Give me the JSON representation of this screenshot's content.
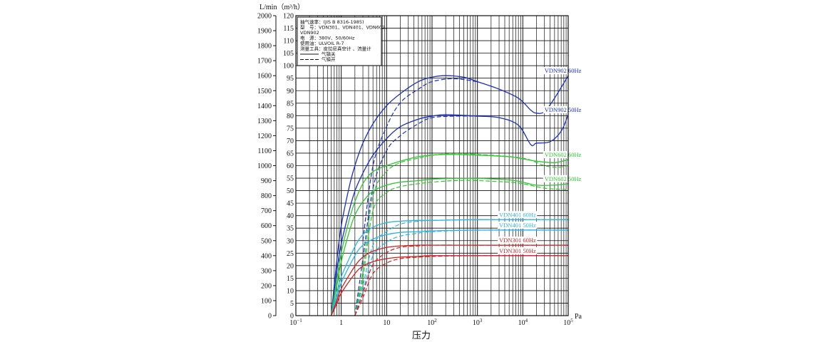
{
  "chart_data": {
    "type": "line",
    "xscale": "log",
    "xlim": [
      0.1,
      100000
    ],
    "x_ticks": [
      {
        "base": "10",
        "exp": "−1"
      },
      {
        "base": "1",
        "exp": ""
      },
      {
        "base": "10",
        "exp": ""
      },
      {
        "base": "10",
        "exp": "2"
      },
      {
        "base": "10",
        "exp": "3"
      },
      {
        "base": "10",
        "exp": "4"
      },
      {
        "base": "10",
        "exp": "5"
      }
    ],
    "x_unit": "Pa",
    "xlabel": "压力",
    "y_unit": "L/min（m³/h）",
    "ylim_lmin": [
      0,
      2000
    ],
    "ylim_m3h": [
      0,
      120
    ],
    "y_left_ticks": [
      "0",
      "100",
      "200",
      "300",
      "400",
      "500",
      "600",
      "700",
      "800",
      "900",
      "1000",
      "1100",
      "1200",
      "1300",
      "1400",
      "1500",
      "1600",
      "1700",
      "1800",
      "1900",
      "2000"
    ],
    "y_right_ticks": [
      "0",
      "5",
      "10",
      "15",
      "20",
      "25",
      "30",
      "35",
      "40",
      "45",
      "50",
      "55",
      "60",
      "65",
      "70",
      "75",
      "80",
      "85",
      "90",
      "95",
      "100",
      "105",
      "110",
      "115",
      "120"
    ],
    "grid": true,
    "legend": {
      "lines": [
        "抽气速率：(JIS B 8316-1985)",
        "型　号：VDN301、VDN401、VDN602、",
        "VDN902",
        "电　源：380V、50/60Hz",
        "使用油：ULVOIL R-7",
        "测量工具：皮拉尼真空计 、流量计"
      ],
      "solid_label": "气镇关",
      "dashed_label": "气镇开"
    },
    "series": [
      {
        "name": "VDN902  60Hz",
        "color": "#1a2fc8",
        "label_x": 30000,
        "solid": [
          [
            0.6,
            0
          ],
          [
            0.8,
            370
          ],
          [
            1,
            600
          ],
          [
            1.5,
            860
          ],
          [
            2,
            1000
          ],
          [
            3,
            1150
          ],
          [
            5,
            1280
          ],
          [
            10,
            1400
          ],
          [
            20,
            1480
          ],
          [
            50,
            1560
          ],
          [
            100,
            1590
          ],
          [
            200,
            1600
          ],
          [
            500,
            1590
          ],
          [
            1000,
            1560
          ],
          [
            3000,
            1510
          ],
          [
            8000,
            1450
          ],
          [
            15000,
            1370
          ],
          [
            20000,
            1350
          ],
          [
            30000,
            1360
          ],
          [
            50000,
            1450
          ],
          [
            100000,
            1600
          ]
        ],
        "dashed": [
          [
            3,
            500
          ],
          [
            5,
            1000
          ],
          [
            10,
            1260
          ],
          [
            20,
            1420
          ],
          [
            50,
            1510
          ],
          [
            100,
            1560
          ],
          [
            300,
            1580
          ],
          [
            1000,
            1560
          ]
        ]
      },
      {
        "name": "VDN902  50Hz",
        "color": "#1a2fc8",
        "label_x": 30000,
        "solid": [
          [
            0.6,
            0
          ],
          [
            0.8,
            300
          ],
          [
            1,
            480
          ],
          [
            1.5,
            700
          ],
          [
            2,
            830
          ],
          [
            3,
            950
          ],
          [
            5,
            1070
          ],
          [
            10,
            1180
          ],
          [
            20,
            1260
          ],
          [
            50,
            1310
          ],
          [
            100,
            1330
          ],
          [
            200,
            1340
          ],
          [
            1000,
            1330
          ],
          [
            3000,
            1320
          ],
          [
            8000,
            1270
          ],
          [
            15000,
            1140
          ],
          [
            20000,
            1150
          ],
          [
            40000,
            1160
          ],
          [
            70000,
            1230
          ],
          [
            100000,
            1340
          ]
        ],
        "dashed": [
          [
            2,
            0
          ],
          [
            3,
            380
          ],
          [
            5,
            850
          ],
          [
            10,
            1100
          ],
          [
            20,
            1200
          ],
          [
            50,
            1280
          ],
          [
            100,
            1320
          ],
          [
            300,
            1330
          ],
          [
            1000,
            1330
          ]
        ]
      },
      {
        "name": "VDN602  60Hz",
        "color": "#2ec82e",
        "label_x": 30000,
        "solid": [
          [
            0.6,
            0
          ],
          [
            0.8,
            240
          ],
          [
            1,
            420
          ],
          [
            1.5,
            640
          ],
          [
            2,
            760
          ],
          [
            3,
            880
          ],
          [
            5,
            960
          ],
          [
            10,
            1000
          ],
          [
            20,
            1030
          ],
          [
            50,
            1060
          ],
          [
            100,
            1070
          ],
          [
            200,
            1075
          ],
          [
            1000,
            1070
          ],
          [
            5000,
            1060
          ],
          [
            10000,
            1045
          ],
          [
            20000,
            1030
          ],
          [
            50000,
            1020
          ],
          [
            100000,
            1040
          ]
        ],
        "dashed": [
          [
            2,
            0
          ],
          [
            3,
            300
          ],
          [
            5,
            800
          ],
          [
            10,
            960
          ],
          [
            20,
            1020
          ],
          [
            50,
            1050
          ],
          [
            100,
            1070
          ],
          [
            300,
            1080
          ],
          [
            1000,
            1075
          ],
          [
            10000,
            1050
          ],
          [
            30000,
            1000
          ],
          [
            60000,
            990
          ],
          [
            100000,
            1000
          ]
        ]
      },
      {
        "name": "VDN602  50Hz",
        "color": "#2ec82e",
        "label_x": 30000,
        "solid": [
          [
            0.6,
            0
          ],
          [
            0.8,
            200
          ],
          [
            1,
            360
          ],
          [
            1.5,
            560
          ],
          [
            2,
            670
          ],
          [
            3,
            760
          ],
          [
            5,
            830
          ],
          [
            10,
            870
          ],
          [
            20,
            890
          ],
          [
            50,
            900
          ],
          [
            100,
            910
          ],
          [
            300,
            915
          ],
          [
            1000,
            915
          ],
          [
            5000,
            905
          ],
          [
            10000,
            890
          ],
          [
            20000,
            870
          ],
          [
            50000,
            870
          ],
          [
            100000,
            880
          ]
        ],
        "dashed": [
          [
            2,
            0
          ],
          [
            3,
            250
          ],
          [
            5,
            700
          ],
          [
            10,
            820
          ],
          [
            20,
            860
          ],
          [
            50,
            880
          ],
          [
            100,
            890
          ],
          [
            300,
            900
          ],
          [
            1000,
            900
          ],
          [
            5000,
            890
          ],
          [
            10000,
            880
          ],
          [
            30000,
            850
          ],
          [
            100000,
            840
          ]
        ]
      },
      {
        "name": "VDN401  60Hz",
        "color": "#29b6e8",
        "label_x": 3000,
        "solid": [
          [
            0.6,
            0
          ],
          [
            0.8,
            150
          ],
          [
            1,
            260
          ],
          [
            2,
            460
          ],
          [
            3,
            540
          ],
          [
            5,
            590
          ],
          [
            10,
            620
          ],
          [
            20,
            630
          ],
          [
            50,
            635
          ],
          [
            100,
            635
          ],
          [
            1000,
            640
          ],
          [
            100000,
            640
          ]
        ],
        "dashed": [
          [
            2,
            0
          ],
          [
            3,
            200
          ],
          [
            5,
            470
          ],
          [
            10,
            560
          ],
          [
            20,
            610
          ],
          [
            50,
            630
          ],
          [
            100,
            635
          ],
          [
            1000,
            640
          ],
          [
            100000,
            640
          ]
        ]
      },
      {
        "name": "VDN401  50Hz",
        "color": "#29b6e8",
        "label_x": 3000,
        "solid": [
          [
            0.6,
            0
          ],
          [
            0.8,
            120
          ],
          [
            1,
            220
          ],
          [
            2,
            400
          ],
          [
            3,
            470
          ],
          [
            5,
            510
          ],
          [
            10,
            540
          ],
          [
            20,
            555
          ],
          [
            50,
            560
          ],
          [
            100,
            565
          ],
          [
            1000,
            570
          ],
          [
            100000,
            570
          ]
        ],
        "dashed": [
          [
            2,
            0
          ],
          [
            3,
            160
          ],
          [
            5,
            400
          ],
          [
            10,
            490
          ],
          [
            20,
            530
          ],
          [
            50,
            550
          ],
          [
            100,
            560
          ],
          [
            1000,
            570
          ],
          [
            100000,
            570
          ]
        ]
      },
      {
        "name": "VDN301  60Hz",
        "color": "#d42020",
        "label_x": 3000,
        "solid": [
          [
            0.6,
            0
          ],
          [
            0.8,
            100
          ],
          [
            1,
            180
          ],
          [
            2,
            330
          ],
          [
            3,
            390
          ],
          [
            5,
            430
          ],
          [
            10,
            455
          ],
          [
            20,
            465
          ],
          [
            50,
            470
          ],
          [
            100,
            470
          ],
          [
            1000,
            470
          ],
          [
            100000,
            470
          ]
        ],
        "dashed": [
          [
            2,
            0
          ],
          [
            3,
            150
          ],
          [
            5,
            340
          ],
          [
            10,
            420
          ],
          [
            20,
            455
          ],
          [
            50,
            465
          ],
          [
            100,
            470
          ],
          [
            1000,
            470
          ],
          [
            100000,
            470
          ]
        ]
      },
      {
        "name": "VDN301  50Hz",
        "color": "#d42020",
        "label_x": 3000,
        "solid": [
          [
            0.6,
            0
          ],
          [
            0.8,
            80
          ],
          [
            1,
            150
          ],
          [
            2,
            280
          ],
          [
            3,
            330
          ],
          [
            5,
            360
          ],
          [
            10,
            380
          ],
          [
            20,
            390
          ],
          [
            50,
            395
          ],
          [
            100,
            400
          ],
          [
            1000,
            400
          ],
          [
            100000,
            400
          ]
        ],
        "dashed": [
          [
            2,
            0
          ],
          [
            3,
            120
          ],
          [
            5,
            280
          ],
          [
            10,
            350
          ],
          [
            20,
            380
          ],
          [
            50,
            390
          ],
          [
            100,
            395
          ],
          [
            1000,
            400
          ],
          [
            100000,
            400
          ]
        ]
      }
    ]
  }
}
